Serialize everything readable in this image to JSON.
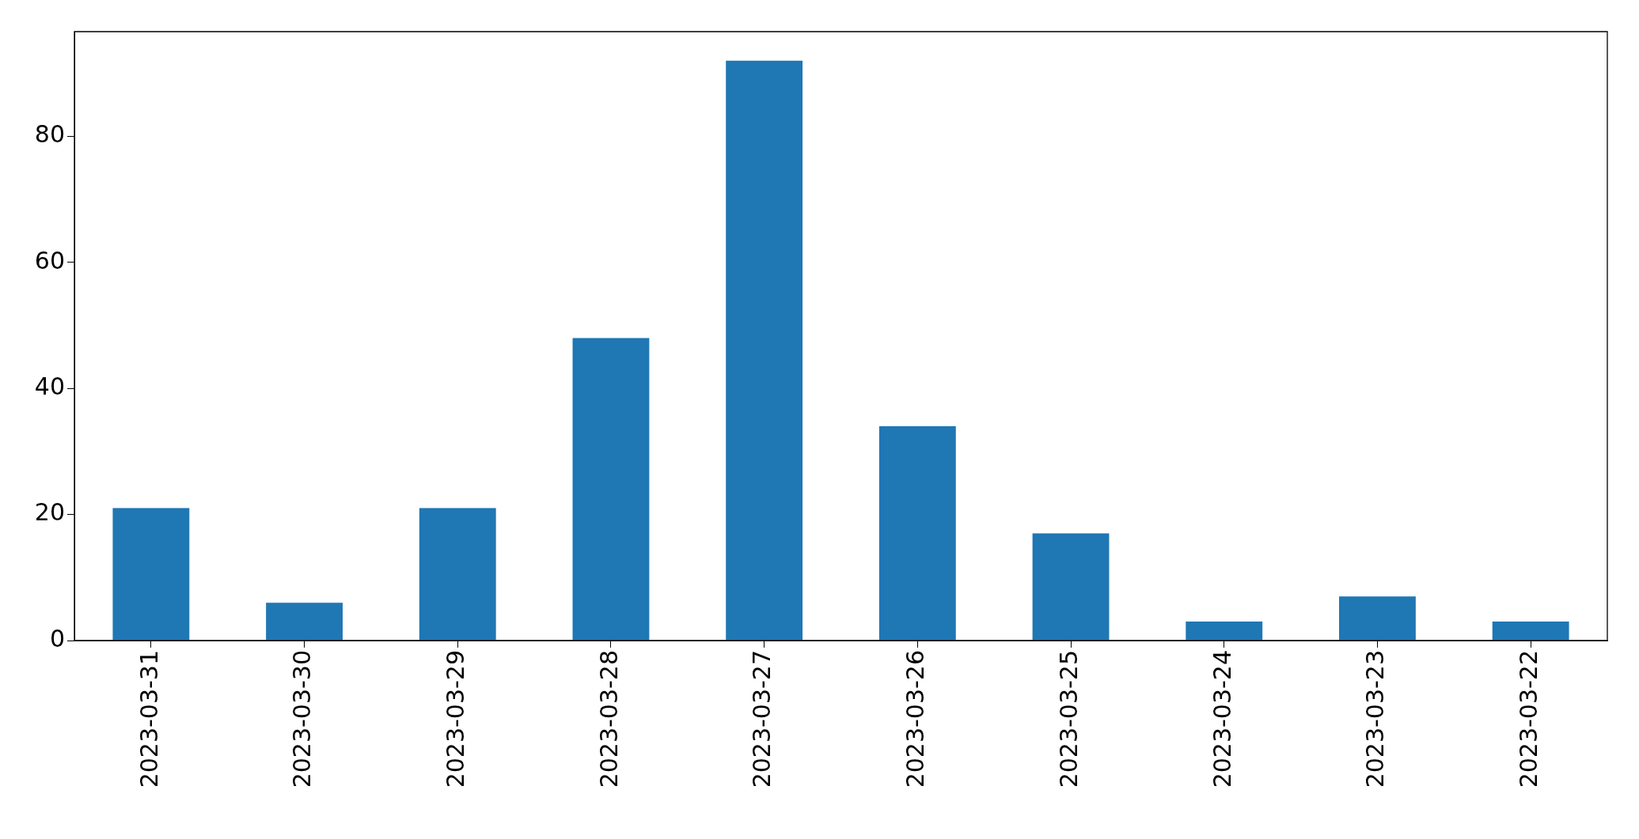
{
  "chart_data": {
    "type": "bar",
    "categories": [
      "2023-03-31",
      "2023-03-30",
      "2023-03-29",
      "2023-03-28",
      "2023-03-27",
      "2023-03-26",
      "2023-03-25",
      "2023-03-24",
      "2023-03-23",
      "2023-03-22"
    ],
    "values": [
      21,
      6,
      21,
      48,
      92,
      34,
      17,
      3,
      7,
      3
    ],
    "color": "#1f77b4",
    "ylim": [
      0,
      96.6
    ],
    "yticks": [
      0,
      20,
      40,
      60,
      80
    ]
  }
}
